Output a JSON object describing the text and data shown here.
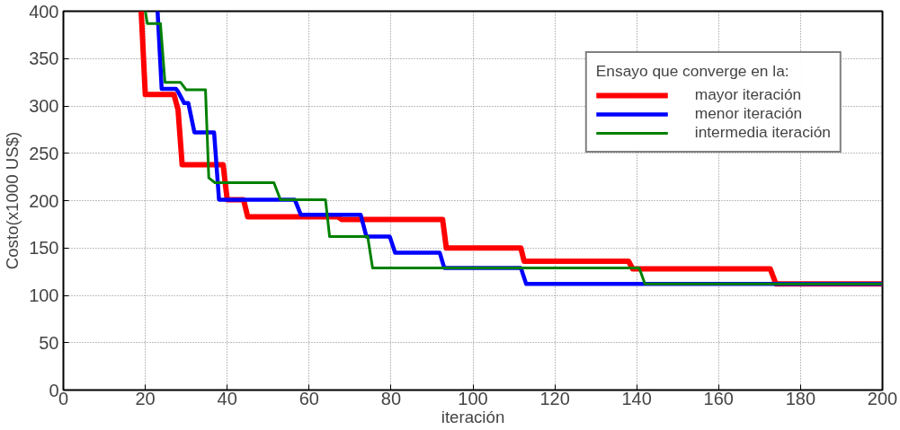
{
  "chart_data": {
    "type": "line",
    "xlabel": "iteración",
    "ylabel": "Costo(x1000 US$)",
    "legend_title": "Ensayo que converge en la:",
    "xlim": [
      0,
      200
    ],
    "ylim": [
      0,
      400
    ],
    "xticks": [
      0,
      20,
      40,
      60,
      80,
      100,
      120,
      140,
      160,
      180,
      200
    ],
    "yticks": [
      0,
      50,
      100,
      150,
      200,
      250,
      300,
      350,
      400
    ],
    "grid": true,
    "legend": "top right",
    "line_style": "solid",
    "marker": "none",
    "series": [
      {
        "name": "mayor iteración",
        "color": "#ff0000",
        "x": [
          19,
          20,
          27,
          28,
          29,
          39,
          40,
          44,
          45,
          67,
          68,
          92.6,
          93.5,
          111.7,
          112.5,
          138,
          139,
          172.6,
          174,
          200
        ],
        "values": [
          400,
          312,
          312,
          296,
          238,
          238,
          201,
          201,
          183,
          183,
          180,
          180,
          150,
          150,
          136,
          136,
          128,
          128,
          112,
          112
        ]
      },
      {
        "name": "menor iteración",
        "color": "#0000ff",
        "x": [
          23,
          24,
          27.5,
          28,
          29.5,
          30.5,
          32,
          36.8,
          38,
          56.5,
          58,
          72.6,
          74,
          79.7,
          81,
          91.9,
          93,
          111.7,
          113,
          200
        ],
        "values": [
          400,
          318,
          318,
          315,
          303,
          303,
          272,
          272,
          201,
          201,
          185,
          185,
          162,
          162,
          145,
          145,
          129,
          129,
          112,
          112
        ]
      },
      {
        "name": "intermedia iteración",
        "color": "#008000",
        "x": [
          20,
          20.5,
          23.7,
          24.8,
          28.6,
          30,
          34.7,
          35.5,
          37,
          51.4,
          53,
          64,
          65,
          74.3,
          75.5,
          140.6,
          142,
          200
        ],
        "values": [
          400,
          387,
          387,
          325,
          325,
          317,
          317,
          224,
          219,
          219,
          201,
          201,
          162,
          162,
          129,
          129,
          112,
          112
        ]
      }
    ]
  }
}
